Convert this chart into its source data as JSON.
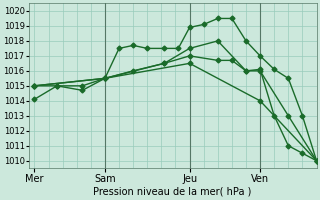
{
  "bg_color": "#cce8dc",
  "grid_color": "#99ccbb",
  "line_color": "#1a6b2a",
  "marker_color": "#1a6b2a",
  "xlabel": "Pression niveau de la mer( hPa )",
  "ylim": [
    1009.5,
    1020.5
  ],
  "yticks": [
    1010,
    1011,
    1012,
    1013,
    1014,
    1015,
    1016,
    1017,
    1018,
    1019,
    1020
  ],
  "day_labels": [
    "Mer",
    "Sam",
    "Jeu",
    "Ven"
  ],
  "day_positions": [
    0,
    25,
    55,
    80
  ],
  "xlim": [
    -2,
    100
  ],
  "vlines_x": [
    25,
    55,
    80
  ],
  "series": [
    {
      "x": [
        0,
        8,
        17,
        25,
        30,
        35,
        40,
        46,
        51,
        55,
        60,
        65,
        70,
        75,
        80,
        85,
        90,
        95,
        100
      ],
      "y": [
        1014.1,
        1015.0,
        1015.0,
        1015.5,
        1017.5,
        1017.7,
        1017.5,
        1017.5,
        1017.5,
        1018.9,
        1019.1,
        1019.5,
        1019.5,
        1018.0,
        1017.0,
        1016.1,
        1015.5,
        1013.0,
        1010.0
      ],
      "markersize": 2.5,
      "linewidth": 1.0
    },
    {
      "x": [
        0,
        8,
        17,
        25,
        35,
        46,
        55,
        65,
        70,
        75,
        80,
        85,
        90,
        95,
        100
      ],
      "y": [
        1015.0,
        1015.0,
        1014.7,
        1015.5,
        1016.0,
        1016.5,
        1017.0,
        1016.7,
        1016.7,
        1016.0,
        1016.1,
        1013.0,
        1011.0,
        1010.5,
        1010.0
      ],
      "markersize": 2.5,
      "linewidth": 1.0
    },
    {
      "x": [
        0,
        25,
        46,
        55,
        65,
        75,
        80,
        90,
        100
      ],
      "y": [
        1015.0,
        1015.5,
        1016.5,
        1017.5,
        1018.0,
        1016.0,
        1016.0,
        1013.0,
        1010.0
      ],
      "markersize": 2.5,
      "linewidth": 1.0
    },
    {
      "x": [
        0,
        25,
        55,
        80,
        100
      ],
      "y": [
        1015.0,
        1015.5,
        1016.5,
        1014.0,
        1010.0
      ],
      "markersize": 2.5,
      "linewidth": 1.0
    }
  ],
  "figsize": [
    3.2,
    2.0
  ],
  "dpi": 100
}
